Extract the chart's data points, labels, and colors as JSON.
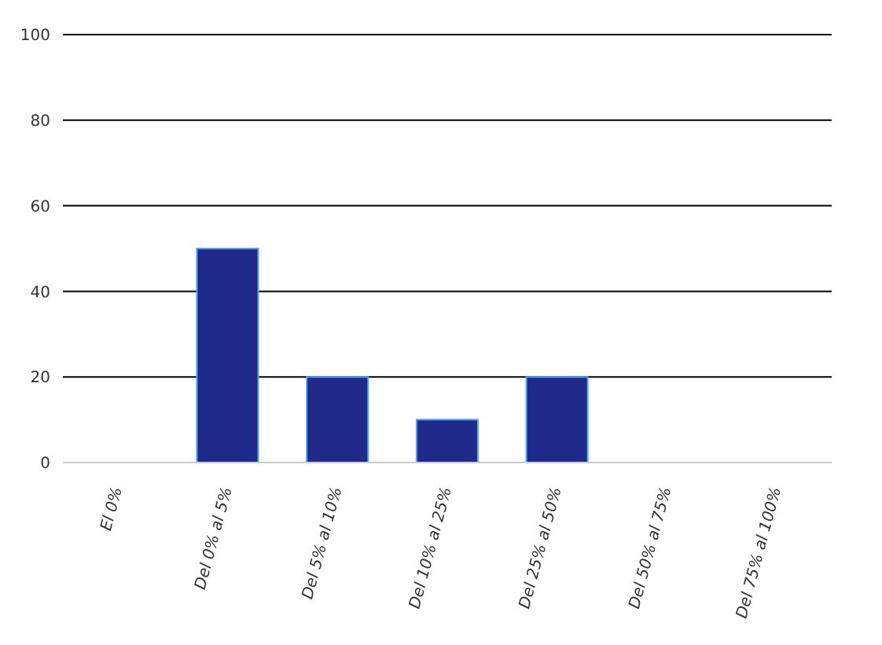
{
  "chart_data": {
    "type": "bar",
    "categories": [
      "El 0%",
      "Del 0% al 5%",
      "Del 5% al 10%",
      "Del 10% al 25%",
      "Del 25% al 50%",
      "Del 50% al 75%",
      "Del 75% al 100%"
    ],
    "values": [
      0,
      50,
      20,
      10,
      20,
      0,
      0
    ],
    "color": "#1f2a8a",
    "ylim": [
      0,
      100
    ],
    "yticks": [
      0,
      20,
      40,
      60,
      80,
      100
    ],
    "grid": "y"
  }
}
